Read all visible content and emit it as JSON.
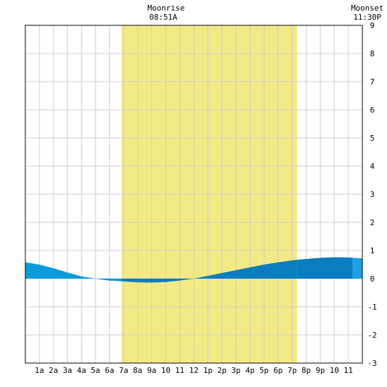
{
  "moon": {
    "rise_label": "Moonrise",
    "rise_time": "08:51A",
    "set_label": "Moonset",
    "set_time": "11:30P"
  },
  "chart_data": {
    "type": "area",
    "title": "",
    "xlabel": "",
    "ylabel": "",
    "x_ticks": [
      "1a",
      "2a",
      "3a",
      "4a",
      "5a",
      "6a",
      "7a",
      "8a",
      "9a",
      "10",
      "11",
      "12",
      "1p",
      "2p",
      "3p",
      "4p",
      "5p",
      "6p",
      "7p",
      "8p",
      "9p",
      "10",
      "11"
    ],
    "xlim_hours": [
      0,
      24
    ],
    "ylim": [
      -3,
      9
    ],
    "y_ticks": [
      -3,
      -2,
      -1,
      0,
      1,
      2,
      3,
      4,
      5,
      6,
      7,
      8,
      9
    ],
    "grid": true,
    "daylight_hours": [
      6.85,
      19.35
    ],
    "series": [
      {
        "hours": [
          0,
          1,
          2,
          3,
          4,
          5,
          5.5,
          6,
          7,
          8,
          9,
          10,
          11,
          12,
          13,
          14,
          15,
          16,
          17,
          18,
          19,
          20,
          21,
          22,
          22.5,
          23,
          24
        ],
        "values": [
          0.58,
          0.5,
          0.37,
          0.22,
          0.08,
          0.0,
          -0.04,
          -0.07,
          -0.1,
          -0.13,
          -0.14,
          -0.12,
          -0.07,
          0.0,
          0.1,
          0.2,
          0.3,
          0.4,
          0.5,
          0.58,
          0.65,
          0.7,
          0.74,
          0.76,
          0.76,
          0.75,
          0.72
        ]
      }
    ],
    "colors": {
      "daylight": "#f3ea86",
      "grid": "#cccccc",
      "night_fill": "#0b9ad9",
      "day_fill": "#0a7dc0",
      "current_fill": "#1fa0e6"
    }
  }
}
